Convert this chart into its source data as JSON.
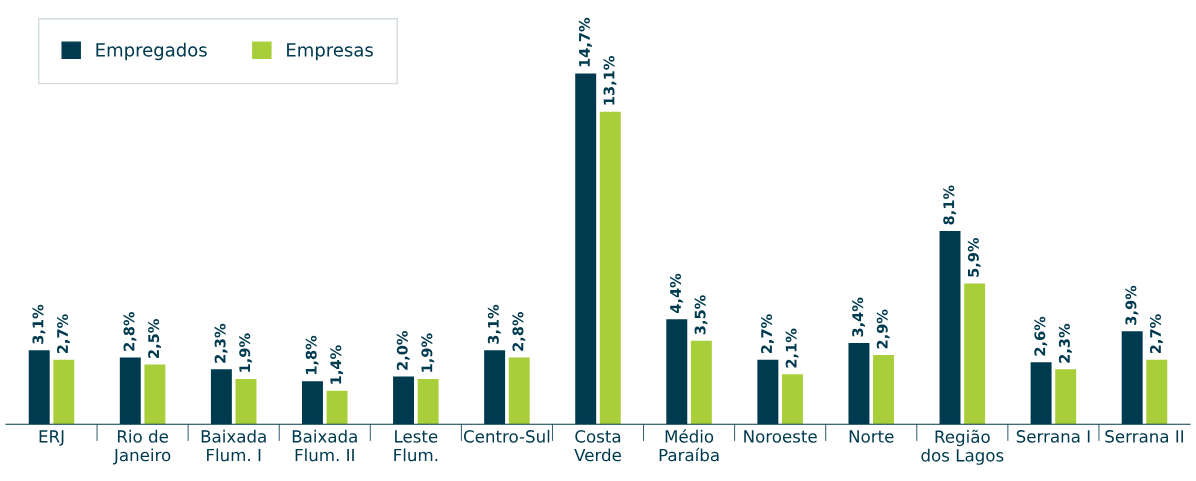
{
  "chart_data": {
    "type": "bar",
    "categories": [
      "ERJ",
      "Rio de\nJaneiro",
      "Baixada\nFlum. I",
      "Baixada\nFlum. II",
      "Leste\nFlum.",
      "Centro-Sul",
      "Costa\nVerde",
      "Médio\nParaíba",
      "Noroeste",
      "Norte",
      "Região\ndos Lagos",
      "Serrana I",
      "Serrana II"
    ],
    "series": [
      {
        "name": "Empregados",
        "color": "#003a4f",
        "values": [
          3.1,
          2.8,
          2.3,
          1.8,
          2.0,
          3.1,
          14.7,
          4.4,
          2.7,
          3.4,
          8.1,
          2.6,
          3.9
        ],
        "value_labels": [
          "3,1%",
          "2,8%",
          "2,3%",
          "1,8%",
          "2,0%",
          "3,1%",
          "14,7%",
          "4,4%",
          "2,7%",
          "3,4%",
          "8,1%",
          "2,6%",
          "3,9%"
        ]
      },
      {
        "name": "Empresas",
        "color": "#a8cf3a",
        "values": [
          2.7,
          2.5,
          1.9,
          1.4,
          1.9,
          2.8,
          13.1,
          3.5,
          2.1,
          2.9,
          5.9,
          2.3,
          2.7
        ],
        "value_labels": [
          "2,7%",
          "2,5%",
          "1,9%",
          "1,4%",
          "1,9%",
          "2,8%",
          "13,1%",
          "3,5%",
          "2,1%",
          "2,9%",
          "5,9%",
          "2,3%",
          "2,7%"
        ]
      }
    ],
    "legend": "top left",
    "grid": false
  }
}
